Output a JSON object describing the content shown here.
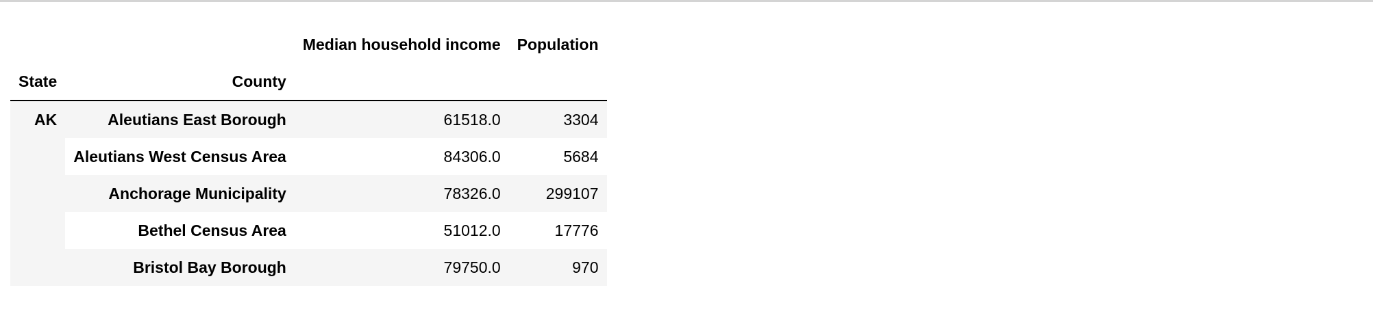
{
  "table": {
    "header_top": {
      "columns": [
        "Median household income",
        "Population"
      ]
    },
    "header_index": {
      "state": "State",
      "county": "County"
    },
    "state_group": "AK",
    "rows": [
      {
        "county": "Aleutians East Borough",
        "income": "61518.0",
        "population": "3304"
      },
      {
        "county": "Aleutians West Census Area",
        "income": "84306.0",
        "population": "5684"
      },
      {
        "county": "Anchorage Municipality",
        "income": "78326.0",
        "population": "299107"
      },
      {
        "county": "Bethel Census Area",
        "income": "51012.0",
        "population": "17776"
      },
      {
        "county": "Bristol Bay Borough",
        "income": "79750.0",
        "population": "970"
      }
    ]
  }
}
